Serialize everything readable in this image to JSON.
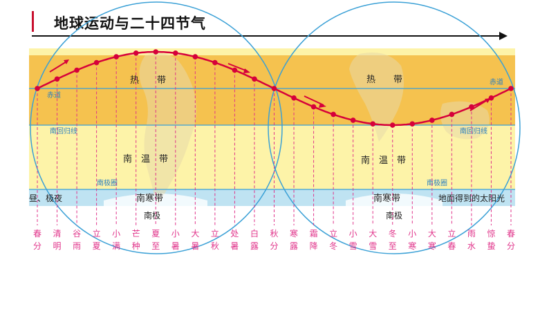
{
  "title": "地球运动与二十四节气",
  "zones": {
    "tropics_left": "热　　带",
    "tropics_right": "热　　带",
    "temperate_left": "南　温　带",
    "temperate_right": "南　温　带",
    "frigid_left": "南寒带",
    "frigid_right": "南寒带"
  },
  "lines": {
    "equator_left": "赤道",
    "equator_right": "赤道",
    "tropic_left": "南回归线",
    "tropic_right": "南回归线",
    "polar_left": "南极圈",
    "polar_right": "南极圈"
  },
  "texts": {
    "polar_night": "昼、极夜",
    "south_pole": "南极",
    "south_pole_right": "南极",
    "sunlight_note": "地面得到的太阳光"
  },
  "terms": [
    {
      "top": "春",
      "bottom": "分"
    },
    {
      "top": "清",
      "bottom": "明"
    },
    {
      "top": "谷",
      "bottom": "雨"
    },
    {
      "top": "立",
      "bottom": "夏"
    },
    {
      "top": "小",
      "bottom": "满"
    },
    {
      "top": "芒",
      "bottom": "种"
    },
    {
      "top": "夏",
      "bottom": "至"
    },
    {
      "top": "小",
      "bottom": "暑"
    },
    {
      "top": "大",
      "bottom": "暑"
    },
    {
      "top": "立",
      "bottom": "秋"
    },
    {
      "top": "处",
      "bottom": "暑"
    },
    {
      "top": "白",
      "bottom": "露"
    },
    {
      "top": "秋",
      "bottom": "分"
    },
    {
      "top": "寒",
      "bottom": "露"
    },
    {
      "top": "霜",
      "bottom": "降"
    },
    {
      "top": "立",
      "bottom": "冬"
    },
    {
      "top": "小",
      "bottom": "雪"
    },
    {
      "top": "大",
      "bottom": "雪"
    },
    {
      "top": "冬",
      "bottom": "至"
    },
    {
      "top": "小",
      "bottom": "寒"
    },
    {
      "top": "大",
      "bottom": "寒"
    },
    {
      "top": "立",
      "bottom": "春"
    },
    {
      "top": "雨",
      "bottom": "水"
    },
    {
      "top": "惊",
      "bottom": "蛰"
    },
    {
      "top": "春",
      "bottom": "分"
    }
  ],
  "colors": {
    "tropics": "#f5c24f",
    "temperate": "#fdf3a8",
    "frigid": "#bfe3f2",
    "curve": "#d6003a",
    "dashes": "#e0338a",
    "labels": "#e0338a",
    "lines": "#3aa0d6"
  }
}
